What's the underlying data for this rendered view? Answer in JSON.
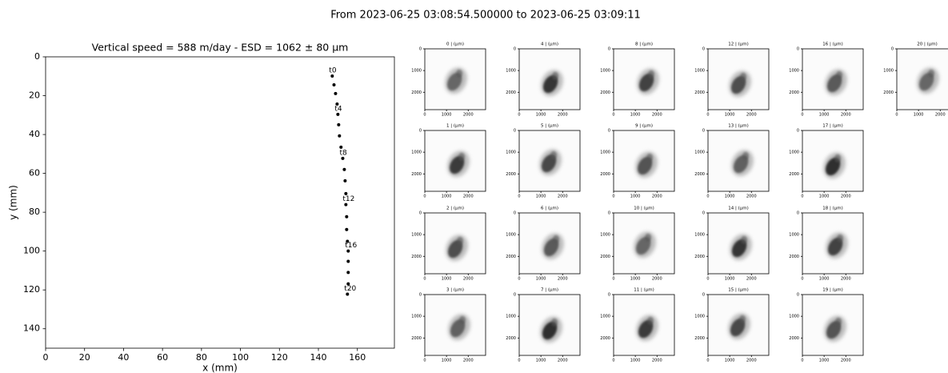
{
  "title": "From 2023-06-25 03:08:54.500000 to 2023-06-25 03:09:11",
  "chart_data": [
    {
      "type": "scatter",
      "title": "Vertical speed = 588 m/day - ESD = 1062 ± 80 µm",
      "x_label": "x (mm)",
      "y_label": "y (mm)",
      "color": "#000000",
      "x": [
        147.1,
        148,
        148.8,
        149.6,
        150,
        150.4,
        150.8,
        151.6,
        152.5,
        153.3,
        153.7,
        154.1,
        154.1,
        154.5,
        154.5,
        154.9,
        155.3,
        155.3,
        155.3,
        155.3,
        154.9
      ],
      "values": [
        9.9,
        14.4,
        18.9,
        24.3,
        29.6,
        35,
        40.7,
        46.5,
        52.3,
        58,
        63.8,
        70.4,
        76.1,
        82.3,
        88.9,
        95,
        100,
        105.3,
        111,
        116.9,
        122.2
      ],
      "point_labels": [
        "t0",
        null,
        null,
        null,
        "t4",
        null,
        null,
        null,
        "t8",
        null,
        null,
        null,
        "t12",
        null,
        null,
        null,
        "t16",
        null,
        null,
        null,
        "t20"
      ],
      "xlim": [
        0,
        179
      ],
      "ylim": [
        150,
        0
      ],
      "xticks": [
        0,
        20,
        40,
        60,
        80,
        100,
        120,
        140,
        160
      ],
      "yticks": [
        0,
        20,
        40,
        60,
        80,
        100,
        120,
        140
      ]
    },
    {
      "type": "image",
      "title": "0 | (µm)",
      "xlim": [
        0,
        2800
      ],
      "ylim": [
        2800,
        0
      ],
      "xticks": [
        0,
        1000,
        2000
      ],
      "yticks": [
        0,
        1000,
        2000
      ]
    },
    {
      "type": "image",
      "title": "1 | (µm)",
      "xlim": [
        0,
        2800
      ],
      "ylim": [
        2800,
        0
      ],
      "xticks": [
        0,
        1000,
        2000
      ],
      "yticks": [
        0,
        1000,
        2000
      ]
    },
    {
      "type": "image",
      "title": "2 | (µm)",
      "xlim": [
        0,
        2800
      ],
      "ylim": [
        2800,
        0
      ],
      "xticks": [
        0,
        1000,
        2000
      ],
      "yticks": [
        0,
        1000,
        2000
      ]
    },
    {
      "type": "image",
      "title": "3 | (µm)",
      "xlim": [
        0,
        2800
      ],
      "ylim": [
        2800,
        0
      ],
      "xticks": [
        0,
        1000,
        2000
      ],
      "yticks": [
        0,
        1000,
        2000
      ]
    },
    {
      "type": "image",
      "title": "4 | (µm)",
      "xlim": [
        0,
        2800
      ],
      "ylim": [
        2800,
        0
      ],
      "xticks": [
        0,
        1000,
        2000
      ],
      "yticks": [
        0,
        1000,
        2000
      ]
    },
    {
      "type": "image",
      "title": "5 | (µm)",
      "xlim": [
        0,
        2800
      ],
      "ylim": [
        2800,
        0
      ],
      "xticks": [
        0,
        1000,
        2000
      ],
      "yticks": [
        0,
        1000,
        2000
      ]
    },
    {
      "type": "image",
      "title": "6 | (µm)",
      "xlim": [
        0,
        2800
      ],
      "ylim": [
        2800,
        0
      ],
      "xticks": [
        0,
        1000,
        2000
      ],
      "yticks": [
        0,
        1000,
        2000
      ]
    },
    {
      "type": "image",
      "title": "7 | (µm)",
      "xlim": [
        0,
        2800
      ],
      "ylim": [
        2800,
        0
      ],
      "xticks": [
        0,
        1000,
        2000
      ],
      "yticks": [
        0,
        1000,
        2000
      ]
    },
    {
      "type": "image",
      "title": "8 | (µm)",
      "xlim": [
        0,
        2800
      ],
      "ylim": [
        2800,
        0
      ],
      "xticks": [
        0,
        1000,
        2000
      ],
      "yticks": [
        0,
        1000,
        2000
      ]
    },
    {
      "type": "image",
      "title": "9 | (µm)",
      "xlim": [
        0,
        2800
      ],
      "ylim": [
        2800,
        0
      ],
      "xticks": [
        0,
        1000,
        2000
      ],
      "yticks": [
        0,
        1000,
        2000
      ]
    },
    {
      "type": "image",
      "title": "10 | (µm)",
      "xlim": [
        0,
        2800
      ],
      "ylim": [
        2800,
        0
      ],
      "xticks": [
        0,
        1000,
        2000
      ],
      "yticks": [
        0,
        1000,
        2000
      ]
    },
    {
      "type": "image",
      "title": "11 | (µm)",
      "xlim": [
        0,
        2800
      ],
      "ylim": [
        2800,
        0
      ],
      "xticks": [
        0,
        1000,
        2000
      ],
      "yticks": [
        0,
        1000,
        2000
      ]
    },
    {
      "type": "image",
      "title": "12 | (µm)",
      "xlim": [
        0,
        2800
      ],
      "ylim": [
        2800,
        0
      ],
      "xticks": [
        0,
        1000,
        2000
      ],
      "yticks": [
        0,
        1000,
        2000
      ]
    },
    {
      "type": "image",
      "title": "13 | (µm)",
      "xlim": [
        0,
        2800
      ],
      "ylim": [
        2800,
        0
      ],
      "xticks": [
        0,
        1000,
        2000
      ],
      "yticks": [
        0,
        1000,
        2000
      ]
    },
    {
      "type": "image",
      "title": "14 | (µm)",
      "xlim": [
        0,
        2800
      ],
      "ylim": [
        2800,
        0
      ],
      "xticks": [
        0,
        1000,
        2000
      ],
      "yticks": [
        0,
        1000,
        2000
      ]
    },
    {
      "type": "image",
      "title": "15 | (µm)",
      "xlim": [
        0,
        2800
      ],
      "ylim": [
        2800,
        0
      ],
      "xticks": [
        0,
        1000,
        2000
      ],
      "yticks": [
        0,
        1000,
        2000
      ]
    },
    {
      "type": "image",
      "title": "16 | (µm)",
      "xlim": [
        0,
        2800
      ],
      "ylim": [
        2800,
        0
      ],
      "xticks": [
        0,
        1000,
        2000
      ],
      "yticks": [
        0,
        1000,
        2000
      ]
    },
    {
      "type": "image",
      "title": "17 | (µm)",
      "xlim": [
        0,
        2800
      ],
      "ylim": [
        2800,
        0
      ],
      "xticks": [
        0,
        1000,
        2000
      ],
      "yticks": [
        0,
        1000,
        2000
      ]
    },
    {
      "type": "image",
      "title": "18 | (µm)",
      "xlim": [
        0,
        2800
      ],
      "ylim": [
        2800,
        0
      ],
      "xticks": [
        0,
        1000,
        2000
      ],
      "yticks": [
        0,
        1000,
        2000
      ]
    },
    {
      "type": "image",
      "title": "19 | (µm)",
      "xlim": [
        0,
        2800
      ],
      "ylim": [
        2800,
        0
      ],
      "xticks": [
        0,
        1000,
        2000
      ],
      "yticks": [
        0,
        1000,
        2000
      ]
    },
    {
      "type": "image",
      "title": "20 | (µm)",
      "xlim": [
        0,
        2800
      ],
      "ylim": [
        2800,
        0
      ],
      "xticks": [
        0,
        1000,
        2000
      ],
      "yticks": [
        0,
        1000,
        2000
      ]
    }
  ]
}
